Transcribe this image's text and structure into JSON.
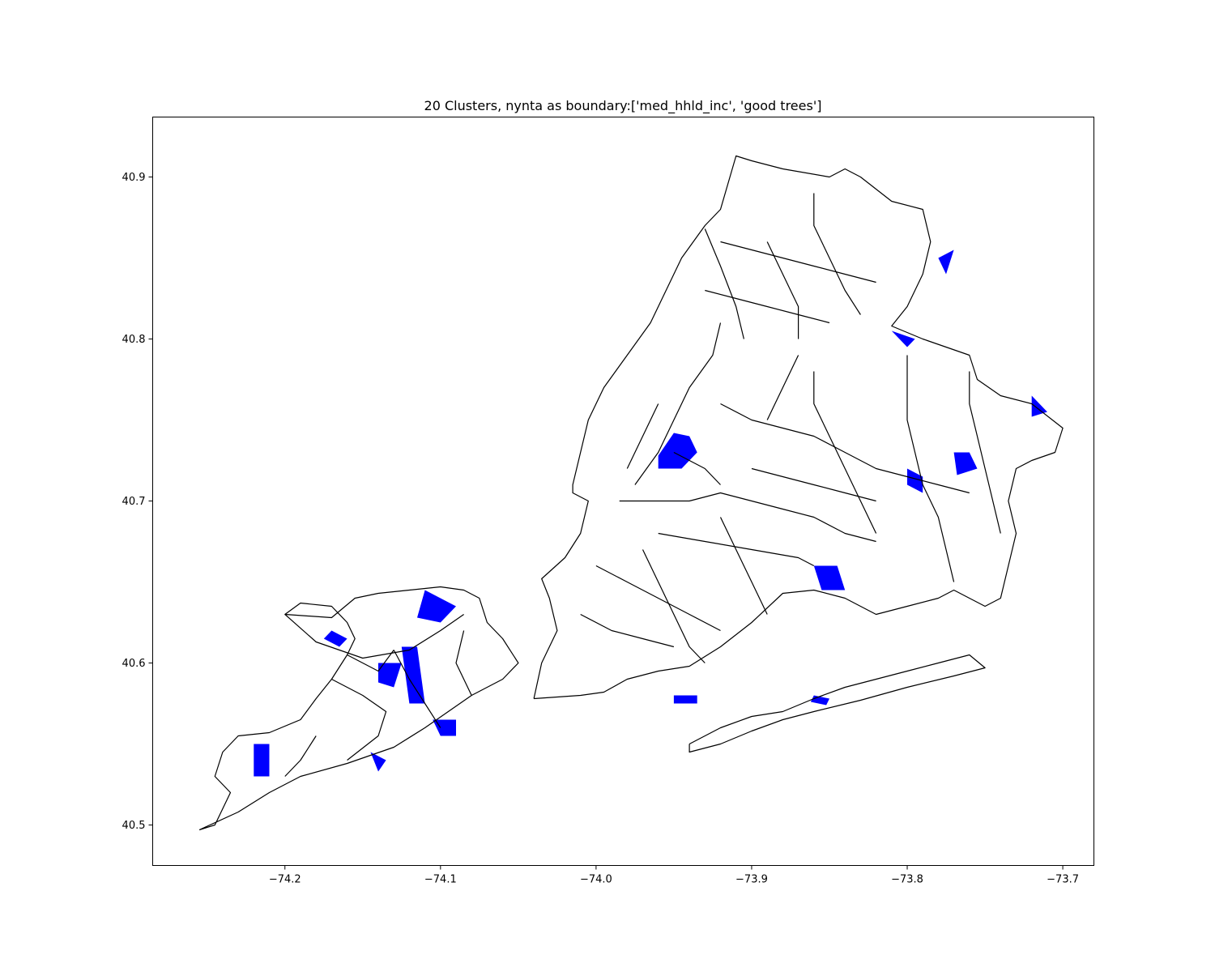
{
  "chart_data": {
    "type": "map",
    "title": "20 Clusters, nynta as boundary:['med_hhld_inc', 'good trees']",
    "xlabel": "",
    "ylabel": "",
    "xlim": [
      -74.285,
      -73.68
    ],
    "ylim": [
      40.475,
      40.937
    ],
    "x_ticks": [
      -74.2,
      -74.1,
      -74.0,
      -73.9,
      -73.8,
      -73.7
    ],
    "x_tick_labels": [
      "−74.2",
      "−74.1",
      "−74.0",
      "−73.9",
      "−73.8",
      "−73.7"
    ],
    "y_ticks": [
      40.5,
      40.6,
      40.7,
      40.8,
      40.9
    ],
    "y_tick_labels": [
      "40.5",
      "40.6",
      "40.7",
      "40.8",
      "40.9"
    ],
    "grid": false,
    "legend": "none",
    "boundary_color": "#000000",
    "highlight_color": "#0000ff",
    "boundaries": [
      [
        [
          -74.255,
          40.497
        ],
        [
          -74.245,
          40.5
        ],
        [
          -74.24,
          40.51
        ],
        [
          -74.235,
          40.52
        ],
        [
          -74.245,
          40.53
        ],
        [
          -74.24,
          40.545
        ],
        [
          -74.23,
          40.555
        ],
        [
          -74.21,
          40.557
        ],
        [
          -74.19,
          40.565
        ],
        [
          -74.18,
          40.578
        ],
        [
          -74.17,
          40.59
        ],
        [
          -74.16,
          40.605
        ],
        [
          -74.155,
          40.615
        ],
        [
          -74.16,
          40.625
        ],
        [
          -74.17,
          40.635
        ],
        [
          -74.19,
          40.637
        ],
        [
          -74.2,
          40.63
        ],
        [
          -74.17,
          40.628
        ],
        [
          -74.155,
          40.64
        ],
        [
          -74.14,
          40.643
        ],
        [
          -74.12,
          40.645
        ],
        [
          -74.1,
          40.647
        ],
        [
          -74.085,
          40.645
        ],
        [
          -74.075,
          40.64
        ],
        [
          -74.07,
          40.625
        ],
        [
          -74.06,
          40.615
        ],
        [
          -74.05,
          40.6
        ],
        [
          -74.06,
          40.59
        ],
        [
          -74.08,
          40.58
        ],
        [
          -74.095,
          40.57
        ],
        [
          -74.11,
          40.56
        ],
        [
          -74.13,
          40.548
        ],
        [
          -74.16,
          40.538
        ],
        [
          -74.19,
          40.53
        ],
        [
          -74.21,
          40.52
        ],
        [
          -74.23,
          40.508
        ],
        [
          -74.255,
          40.497
        ]
      ],
      [
        [
          -74.2,
          40.63
        ],
        [
          -74.18,
          40.613
        ],
        [
          -74.15,
          40.603
        ],
        [
          -74.12,
          40.608
        ],
        [
          -74.1,
          40.62
        ],
        [
          -74.085,
          40.63
        ]
      ],
      [
        [
          -74.17,
          40.59
        ],
        [
          -74.15,
          40.58
        ],
        [
          -74.135,
          40.57
        ],
        [
          -74.14,
          40.555
        ],
        [
          -74.16,
          40.54
        ]
      ],
      [
        [
          -74.13,
          40.608
        ],
        [
          -74.12,
          40.59
        ],
        [
          -74.11,
          40.575
        ],
        [
          -74.1,
          40.56
        ]
      ],
      [
        [
          -74.18,
          40.555
        ],
        [
          -74.19,
          40.54
        ],
        [
          -74.2,
          40.53
        ]
      ],
      [
        [
          -74.08,
          40.58
        ],
        [
          -74.09,
          40.6
        ],
        [
          -74.085,
          40.62
        ]
      ],
      [
        [
          -74.16,
          40.605
        ],
        [
          -74.14,
          40.595
        ],
        [
          -74.13,
          40.608
        ]
      ],
      [
        [
          -74.04,
          40.578
        ],
        [
          -74.035,
          40.6
        ],
        [
          -74.025,
          40.62
        ],
        [
          -74.03,
          40.64
        ],
        [
          -74.035,
          40.652
        ],
        [
          -74.02,
          40.665
        ],
        [
          -74.01,
          40.68
        ],
        [
          -74.005,
          40.7
        ],
        [
          -74.015,
          40.705
        ],
        [
          -74.015,
          40.71
        ],
        [
          -74.01,
          40.73
        ],
        [
          -74.005,
          40.75
        ],
        [
          -73.995,
          40.77
        ],
        [
          -73.98,
          40.79
        ],
        [
          -73.965,
          40.81
        ],
        [
          -73.955,
          40.83
        ],
        [
          -73.945,
          40.85
        ],
        [
          -73.93,
          40.87
        ],
        [
          -73.92,
          40.88
        ],
        [
          -73.91,
          40.913
        ],
        [
          -73.9,
          40.91
        ],
        [
          -73.88,
          40.905
        ],
        [
          -73.85,
          40.9
        ],
        [
          -73.84,
          40.905
        ],
        [
          -73.83,
          40.9
        ],
        [
          -73.81,
          40.885
        ],
        [
          -73.79,
          40.88
        ],
        [
          -73.785,
          40.86
        ],
        [
          -73.79,
          40.84
        ],
        [
          -73.8,
          40.82
        ],
        [
          -73.81,
          40.808
        ],
        [
          -73.79,
          40.8
        ],
        [
          -73.775,
          40.795
        ],
        [
          -73.76,
          40.79
        ],
        [
          -73.755,
          40.775
        ],
        [
          -73.74,
          40.765
        ],
        [
          -73.72,
          40.76
        ],
        [
          -73.7,
          40.745
        ],
        [
          -73.705,
          40.73
        ],
        [
          -73.72,
          40.725
        ],
        [
          -73.73,
          40.72
        ],
        [
          -73.735,
          40.7
        ],
        [
          -73.73,
          40.68
        ],
        [
          -73.735,
          40.66
        ],
        [
          -73.74,
          40.64
        ],
        [
          -73.75,
          40.635
        ],
        [
          -73.76,
          40.64
        ],
        [
          -73.77,
          40.645
        ],
        [
          -73.78,
          40.64
        ],
        [
          -73.8,
          40.635
        ],
        [
          -73.82,
          40.63
        ],
        [
          -73.84,
          40.64
        ],
        [
          -73.86,
          40.645
        ],
        [
          -73.88,
          40.643
        ],
        [
          -73.9,
          40.625
        ],
        [
          -73.92,
          40.61
        ],
        [
          -73.94,
          40.598
        ],
        [
          -73.96,
          40.595
        ],
        [
          -73.98,
          40.59
        ],
        [
          -73.995,
          40.582
        ],
        [
          -74.01,
          40.58
        ],
        [
          -74.04,
          40.578
        ]
      ],
      [
        [
          -73.94,
          40.55
        ],
        [
          -73.92,
          40.56
        ],
        [
          -73.9,
          40.567
        ],
        [
          -73.88,
          40.57
        ],
        [
          -73.86,
          40.578
        ],
        [
          -73.84,
          40.585
        ],
        [
          -73.82,
          40.59
        ],
        [
          -73.8,
          40.595
        ],
        [
          -73.78,
          40.6
        ],
        [
          -73.76,
          40.605
        ],
        [
          -73.75,
          40.597
        ],
        [
          -73.77,
          40.592
        ],
        [
          -73.8,
          40.585
        ],
        [
          -73.83,
          40.577
        ],
        [
          -73.86,
          40.57
        ],
        [
          -73.88,
          40.565
        ],
        [
          -73.9,
          40.558
        ],
        [
          -73.92,
          40.55
        ],
        [
          -73.94,
          40.545
        ],
        [
          -73.94,
          40.55
        ]
      ],
      [
        [
          -73.975,
          40.71
        ],
        [
          -73.96,
          40.73
        ],
        [
          -73.95,
          40.75
        ],
        [
          -73.94,
          40.77
        ],
        [
          -73.925,
          40.79
        ],
        [
          -73.92,
          40.81
        ]
      ],
      [
        [
          -73.93,
          40.868
        ],
        [
          -73.92,
          40.845
        ],
        [
          -73.91,
          40.82
        ],
        [
          -73.905,
          40.8
        ]
      ],
      [
        [
          -73.985,
          40.7
        ],
        [
          -73.96,
          40.7
        ],
        [
          -73.94,
          40.7
        ],
        [
          -73.92,
          40.705
        ],
        [
          -73.9,
          40.7
        ],
        [
          -73.88,
          40.695
        ],
        [
          -73.86,
          40.69
        ],
        [
          -73.84,
          40.68
        ],
        [
          -73.82,
          40.675
        ]
      ],
      [
        [
          -73.96,
          40.68
        ],
        [
          -73.93,
          40.675
        ],
        [
          -73.9,
          40.67
        ],
        [
          -73.87,
          40.665
        ],
        [
          -73.86,
          40.66
        ]
      ],
      [
        [
          -74.0,
          40.66
        ],
        [
          -73.98,
          40.65
        ],
        [
          -73.96,
          40.64
        ],
        [
          -73.94,
          40.63
        ],
        [
          -73.92,
          40.62
        ]
      ],
      [
        [
          -74.01,
          40.63
        ],
        [
          -73.99,
          40.62
        ],
        [
          -73.97,
          40.615
        ],
        [
          -73.95,
          40.61
        ]
      ],
      [
        [
          -73.92,
          40.76
        ],
        [
          -73.9,
          40.75
        ],
        [
          -73.88,
          40.745
        ],
        [
          -73.86,
          40.74
        ],
        [
          -73.84,
          40.73
        ],
        [
          -73.82,
          40.72
        ],
        [
          -73.8,
          40.715
        ],
        [
          -73.78,
          40.71
        ],
        [
          -73.76,
          40.705
        ]
      ],
      [
        [
          -73.9,
          40.72
        ],
        [
          -73.88,
          40.715
        ],
        [
          -73.86,
          40.71
        ],
        [
          -73.84,
          40.705
        ],
        [
          -73.82,
          40.7
        ]
      ],
      [
        [
          -73.86,
          40.78
        ],
        [
          -73.86,
          40.76
        ],
        [
          -73.85,
          40.74
        ],
        [
          -73.84,
          40.72
        ],
        [
          -73.83,
          40.7
        ],
        [
          -73.82,
          40.68
        ]
      ],
      [
        [
          -73.8,
          40.79
        ],
        [
          -73.8,
          40.77
        ],
        [
          -73.8,
          40.75
        ],
        [
          -73.795,
          40.73
        ],
        [
          -73.79,
          40.71
        ],
        [
          -73.78,
          40.69
        ],
        [
          -73.775,
          40.67
        ],
        [
          -73.77,
          40.65
        ]
      ],
      [
        [
          -73.76,
          40.78
        ],
        [
          -73.76,
          40.76
        ],
        [
          -73.755,
          40.74
        ],
        [
          -73.75,
          40.72
        ],
        [
          -73.745,
          40.7
        ],
        [
          -73.74,
          40.68
        ]
      ],
      [
        [
          -73.89,
          40.86
        ],
        [
          -73.88,
          40.84
        ],
        [
          -73.87,
          40.82
        ],
        [
          -73.87,
          40.8
        ]
      ],
      [
        [
          -73.86,
          40.89
        ],
        [
          -73.86,
          40.87
        ],
        [
          -73.85,
          40.85
        ],
        [
          -73.84,
          40.83
        ],
        [
          -73.83,
          40.815
        ]
      ],
      [
        [
          -73.92,
          40.86
        ],
        [
          -73.9,
          40.855
        ],
        [
          -73.88,
          40.85
        ],
        [
          -73.86,
          40.845
        ],
        [
          -73.84,
          40.84
        ],
        [
          -73.82,
          40.835
        ]
      ],
      [
        [
          -73.93,
          40.83
        ],
        [
          -73.91,
          40.825
        ],
        [
          -73.89,
          40.82
        ],
        [
          -73.87,
          40.815
        ],
        [
          -73.85,
          40.81
        ]
      ],
      [
        [
          -73.89,
          40.75
        ],
        [
          -73.88,
          40.77
        ],
        [
          -73.87,
          40.79
        ]
      ],
      [
        [
          -73.95,
          40.73
        ],
        [
          -73.93,
          40.72
        ],
        [
          -73.92,
          40.71
        ]
      ],
      [
        [
          -73.92,
          40.69
        ],
        [
          -73.91,
          40.67
        ],
        [
          -73.9,
          40.65
        ],
        [
          -73.89,
          40.63
        ]
      ],
      [
        [
          -73.97,
          40.67
        ],
        [
          -73.96,
          40.65
        ],
        [
          -73.95,
          40.63
        ],
        [
          -73.94,
          40.61
        ],
        [
          -73.93,
          40.6
        ]
      ],
      [
        [
          -73.98,
          40.72
        ],
        [
          -73.97,
          40.74
        ],
        [
          -73.96,
          40.76
        ]
      ]
    ],
    "regions": [
      [
        [
          -73.96,
          40.728
        ],
        [
          -73.95,
          40.742
        ],
        [
          -73.94,
          40.74
        ],
        [
          -73.935,
          40.73
        ],
        [
          -73.945,
          40.72
        ],
        [
          -73.96,
          40.72
        ]
      ],
      [
        [
          -73.86,
          40.66
        ],
        [
          -73.845,
          40.66
        ],
        [
          -73.84,
          40.645
        ],
        [
          -73.855,
          40.645
        ]
      ],
      [
        [
          -73.77,
          40.73
        ],
        [
          -73.76,
          40.73
        ],
        [
          -73.755,
          40.72
        ],
        [
          -73.768,
          40.716
        ]
      ],
      [
        [
          -74.22,
          40.55
        ],
        [
          -74.21,
          40.55
        ],
        [
          -74.21,
          40.53
        ],
        [
          -74.22,
          40.53
        ]
      ],
      [
        [
          -74.125,
          40.61
        ],
        [
          -74.115,
          40.61
        ],
        [
          -74.11,
          40.575
        ],
        [
          -74.12,
          40.575
        ]
      ],
      [
        [
          -74.11,
          40.645
        ],
        [
          -74.09,
          40.635
        ],
        [
          -74.1,
          40.625
        ],
        [
          -74.115,
          40.628
        ]
      ],
      [
        [
          -73.95,
          40.58
        ],
        [
          -73.935,
          40.58
        ],
        [
          -73.935,
          40.575
        ],
        [
          -73.95,
          40.575
        ]
      ],
      [
        [
          -73.72,
          40.765
        ],
        [
          -73.71,
          40.755
        ],
        [
          -73.72,
          40.752
        ]
      ],
      [
        [
          -73.78,
          40.85
        ],
        [
          -73.775,
          40.84
        ],
        [
          -73.77,
          40.855
        ]
      ],
      [
        [
          -74.17,
          40.62
        ],
        [
          -74.16,
          40.615
        ],
        [
          -74.165,
          40.61
        ],
        [
          -74.175,
          40.615
        ]
      ],
      [
        [
          -74.14,
          40.6
        ],
        [
          -74.125,
          40.6
        ],
        [
          -74.13,
          40.585
        ],
        [
          -74.14,
          40.588
        ]
      ],
      [
        [
          -74.105,
          40.565
        ],
        [
          -74.09,
          40.565
        ],
        [
          -74.09,
          40.555
        ],
        [
          -74.1,
          40.555
        ]
      ],
      [
        [
          -74.145,
          40.545
        ],
        [
          -74.135,
          40.54
        ],
        [
          -74.14,
          40.533
        ]
      ],
      [
        [
          -73.86,
          40.58
        ],
        [
          -73.85,
          40.578
        ],
        [
          -73.852,
          40.574
        ],
        [
          -73.862,
          40.576
        ]
      ],
      [
        [
          -73.81,
          40.805
        ],
        [
          -73.795,
          40.8
        ],
        [
          -73.8,
          40.795
        ]
      ],
      [
        [
          -73.8,
          40.72
        ],
        [
          -73.79,
          40.715
        ],
        [
          -73.79,
          40.705
        ],
        [
          -73.8,
          40.71
        ]
      ]
    ]
  }
}
